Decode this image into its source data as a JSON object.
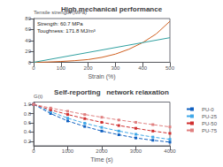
{
  "chart_data": [
    {
      "type": "line",
      "title": "High mechanical performance",
      "xlabel": "Strain (%)",
      "ylabel": "Tensile strength (MPa)",
      "xlim": [
        0,
        500
      ],
      "ylim": [
        0,
        80
      ],
      "xticks": [
        0,
        100,
        200,
        300,
        400,
        500
      ],
      "yticks": [
        0,
        20,
        40,
        60,
        80
      ],
      "grid": false,
      "annotations": [
        "Strength: 60.7 MPa",
        "Toughness: 171.8 MJ/m³"
      ],
      "series": [
        {
          "x": [
            0,
            50,
            100,
            150,
            200,
            250,
            300,
            350,
            400,
            450,
            500
          ],
          "values": [
            0,
            0.5,
            1.5,
            3,
            5,
            9,
            15,
            24,
            36,
            52,
            75
          ],
          "color": "#d06020",
          "line_style": "solid",
          "marker": "none"
        },
        {
          "x": [
            0,
            500
          ],
          "values": [
            0,
            45
          ],
          "color": "#30a0a0",
          "line_style": "solid",
          "marker": "none"
        }
      ]
    },
    {
      "type": "line",
      "title": "Self-reporting   network relaxation",
      "xlabel": "Time (s)",
      "ylabel": "G(t)",
      "x": [
        0,
        500,
        1000,
        1500,
        2000,
        2500,
        3000,
        3500,
        4000
      ],
      "xlim": [
        0,
        4000
      ],
      "ylim": [
        0.1,
        1.05
      ],
      "xticks": [
        0,
        1000,
        2000,
        3000,
        4000
      ],
      "yticks": [
        0.2,
        0.4,
        0.6,
        0.8,
        {
          "value": 1,
          "label": "1.0"
        }
      ],
      "grid": false,
      "legend": "upper right",
      "series": [
        {
          "name": "PU-0",
          "color": "#1060c0",
          "line_style": "dashed",
          "marker": "square",
          "values": [
            1.0,
            0.8,
            0.64,
            0.52,
            0.42,
            0.34,
            0.27,
            0.22,
            0.18
          ]
        },
        {
          "name": "PU-25",
          "color": "#40a8e8",
          "line_style": "dashed",
          "marker": "square",
          "values": [
            1.0,
            0.84,
            0.7,
            0.59,
            0.5,
            0.42,
            0.35,
            0.29,
            0.24
          ]
        },
        {
          "name": "PU-50",
          "color": "#d03030",
          "line_style": "dashed",
          "marker": "square",
          "values": [
            1.0,
            0.88,
            0.78,
            0.69,
            0.61,
            0.54,
            0.48,
            0.42,
            0.37
          ]
        },
        {
          "name": "PU-75",
          "color": "#e08080",
          "line_style": "dashed",
          "marker": "square",
          "values": [
            1.0,
            0.92,
            0.85,
            0.78,
            0.72,
            0.66,
            0.61,
            0.56,
            0.51
          ]
        }
      ]
    }
  ]
}
